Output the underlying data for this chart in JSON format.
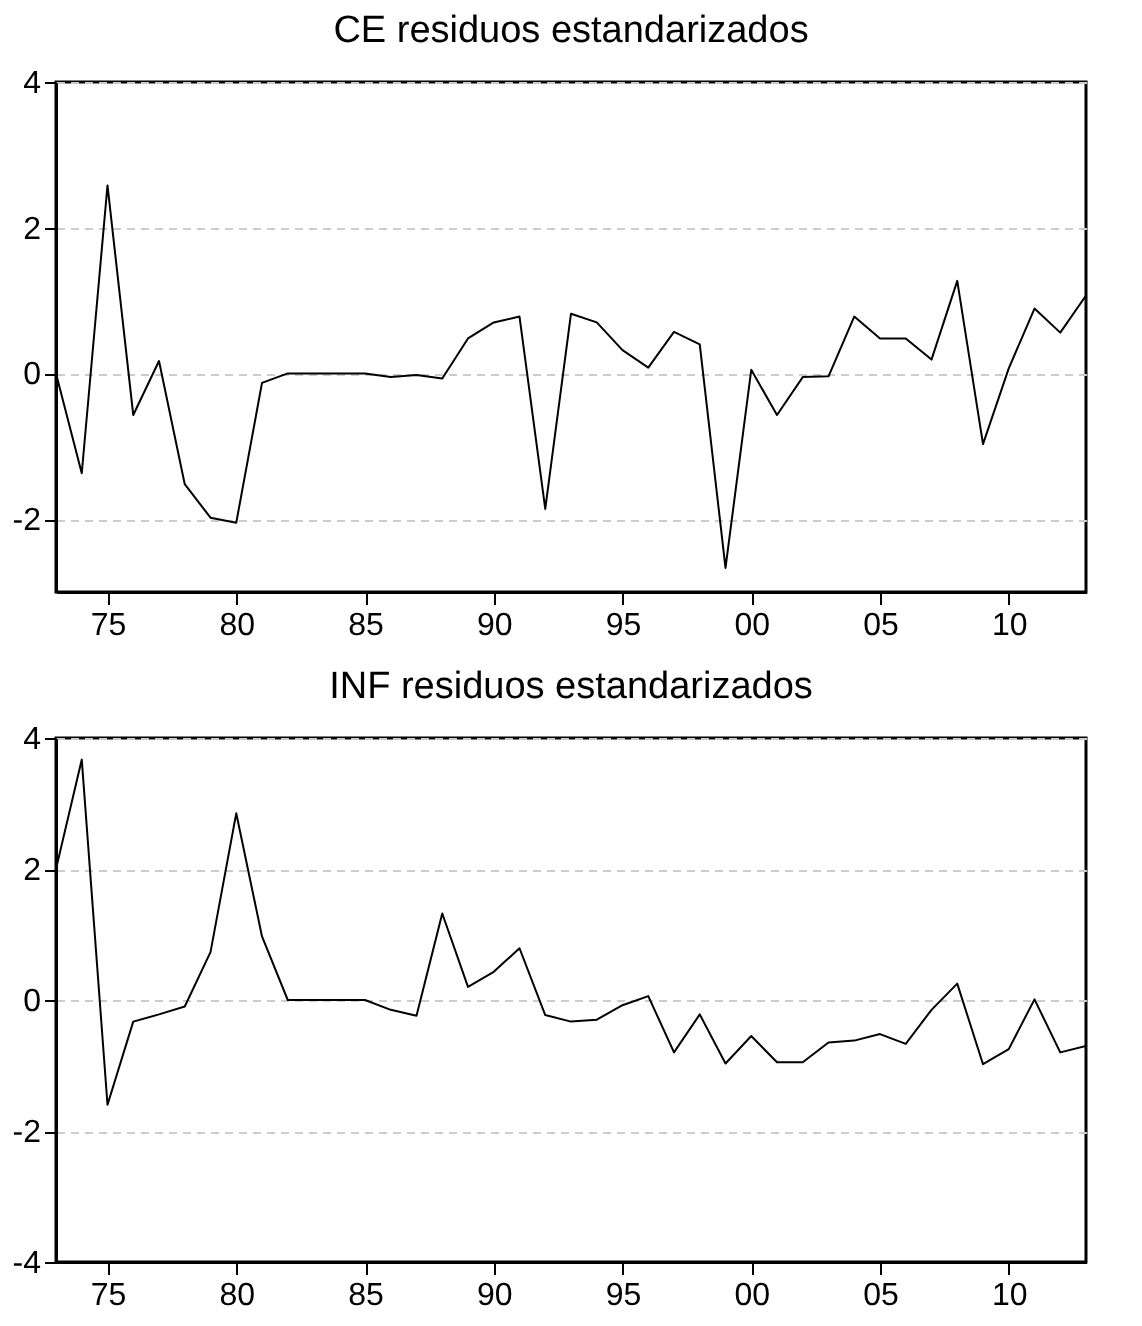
{
  "chart_data": [
    {
      "type": "line",
      "title": "CE residuos estandarizados",
      "x": [
        1973,
        1974,
        1975,
        1976,
        1977,
        1978,
        1979,
        1980,
        1981,
        1982,
        1983,
        1984,
        1985,
        1986,
        1987,
        1988,
        1989,
        1990,
        1991,
        1992,
        1993,
        1994,
        1995,
        1996,
        1997,
        1998,
        1999,
        2000,
        2001,
        2002,
        2003,
        2004,
        2005,
        2006,
        2007,
        2008,
        2009,
        2010,
        2011,
        2012,
        2013
      ],
      "series": [
        {
          "color": "#000000",
          "values": [
            0,
            -1.37,
            2.58,
            -0.57,
            0.17,
            -1.52,
            -1.98,
            -2.05,
            -0.13,
            0,
            0,
            0,
            0,
            -0.05,
            -0.02,
            -0.07,
            0.48,
            0.7,
            0.78,
            -1.86,
            0.82,
            0.7,
            0.32,
            0.08,
            0.57,
            0.4,
            -2.67,
            0.05,
            -0.57,
            -0.05,
            -0.04,
            0.78,
            0.48,
            0.48,
            0.19,
            1.27,
            -0.97,
            0.07,
            0.89,
            0.56,
            1.07
          ]
        }
      ],
      "xlim": [
        1973,
        2013
      ],
      "ylim": [
        -3,
        4
      ],
      "yticks": [
        -2,
        0,
        2,
        4
      ],
      "xticks": [
        {
          "value": 1975,
          "label": "75"
        },
        {
          "value": 1980,
          "label": "80"
        },
        {
          "value": 1985,
          "label": "85"
        },
        {
          "value": 1990,
          "label": "90"
        },
        {
          "value": 1995,
          "label": "95"
        },
        {
          "value": 2000,
          "label": "00"
        },
        {
          "value": 2005,
          "label": "05"
        },
        {
          "value": 2010,
          "label": "10"
        }
      ],
      "grid": "y",
      "line_style": "solid"
    },
    {
      "type": "line",
      "title": "INF residuos estandarizados",
      "x": [
        1973,
        1974,
        1975,
        1976,
        1977,
        1978,
        1979,
        1980,
        1981,
        1982,
        1983,
        1984,
        1985,
        1986,
        1987,
        1988,
        1989,
        1990,
        1991,
        1992,
        1993,
        1994,
        1995,
        1996,
        1997,
        1998,
        1999,
        2000,
        2001,
        2002,
        2003,
        2004,
        2005,
        2006,
        2007,
        2008,
        2009,
        2010,
        2011,
        2012,
        2013
      ],
      "series": [
        {
          "color": "#000000",
          "values": [
            2.0,
            3.67,
            -1.6,
            -0.33,
            -0.22,
            -0.1,
            0.73,
            2.85,
            0.97,
            0,
            0,
            0,
            0,
            -0.15,
            -0.24,
            1.32,
            0.2,
            0.43,
            0.79,
            -0.23,
            -0.33,
            -0.3,
            -0.08,
            0.06,
            -0.8,
            -0.22,
            -0.97,
            -0.55,
            -0.95,
            -0.95,
            -0.65,
            -0.62,
            -0.52,
            -0.67,
            -0.15,
            0.25,
            -0.98,
            -0.75,
            0.01,
            -0.8,
            -0.7
          ]
        }
      ],
      "xlim": [
        1973,
        2013
      ],
      "ylim": [
        -4,
        4
      ],
      "yticks": [
        -4,
        -2,
        0,
        2,
        4
      ],
      "xticks": [
        {
          "value": 1975,
          "label": "75"
        },
        {
          "value": 1980,
          "label": "80"
        },
        {
          "value": 1985,
          "label": "85"
        },
        {
          "value": 1990,
          "label": "90"
        },
        {
          "value": 1995,
          "label": "95"
        },
        {
          "value": 2000,
          "label": "00"
        },
        {
          "value": 2005,
          "label": "05"
        },
        {
          "value": 2010,
          "label": "10"
        }
      ],
      "grid": "y",
      "line_style": "solid"
    }
  ]
}
